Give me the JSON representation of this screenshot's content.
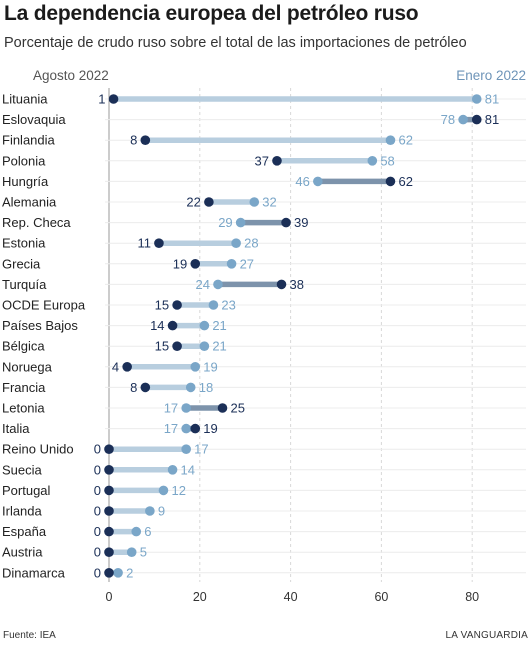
{
  "title": "La dependencia europea del petróleo ruso",
  "subtitle": "Porcentaje de crudo ruso sobre el total de las importaciones de petróleo",
  "source": "Fuente: IEA",
  "brand": "LA VANGUARDIA",
  "colors": {
    "start": "#1b2f57",
    "end": "#7aa6c8",
    "decrease_line": "#b8cedf",
    "increase_line": "#7d93ab",
    "grid": "#d8d8d8",
    "axis": "#9a9a9a"
  },
  "chart_data": {
    "type": "dumbbell",
    "series": [
      {
        "name": "Agosto 2022",
        "key": "aug"
      },
      {
        "name": "Enero 2022",
        "key": "jan"
      }
    ],
    "xlim": [
      0,
      85
    ],
    "xticks": [
      0,
      20,
      40,
      60,
      80
    ],
    "grid": true,
    "rows": [
      {
        "country": "Lituania",
        "aug": 1,
        "jan": 81
      },
      {
        "country": "Eslovaquia",
        "aug": 81,
        "jan": 78
      },
      {
        "country": "Finlandia",
        "aug": 8,
        "jan": 62
      },
      {
        "country": "Polonia",
        "aug": 37,
        "jan": 58
      },
      {
        "country": "Hungría",
        "aug": 62,
        "jan": 46
      },
      {
        "country": "Alemania",
        "aug": 22,
        "jan": 32
      },
      {
        "country": "Rep. Checa",
        "aug": 39,
        "jan": 29
      },
      {
        "country": "Estonia",
        "aug": 11,
        "jan": 28
      },
      {
        "country": "Grecia",
        "aug": 19,
        "jan": 27
      },
      {
        "country": "Turquía",
        "aug": 38,
        "jan": 24
      },
      {
        "country": "OCDE Europa",
        "aug": 15,
        "jan": 23
      },
      {
        "country": "Países Bajos",
        "aug": 14,
        "jan": 21
      },
      {
        "country": "Bélgica",
        "aug": 15,
        "jan": 21
      },
      {
        "country": "Noruega",
        "aug": 4,
        "jan": 19
      },
      {
        "country": "Francia",
        "aug": 8,
        "jan": 18
      },
      {
        "country": "Letonia",
        "aug": 25,
        "jan": 17
      },
      {
        "country": "Italia",
        "aug": 19,
        "jan": 17
      },
      {
        "country": "Reino Unido",
        "aug": 0,
        "jan": 17
      },
      {
        "country": "Suecia",
        "aug": 0,
        "jan": 14
      },
      {
        "country": "Portugal",
        "aug": 0,
        "jan": 12
      },
      {
        "country": "Irlanda",
        "aug": 0,
        "jan": 9
      },
      {
        "country": "España",
        "aug": 0,
        "jan": 6
      },
      {
        "country": "Austria",
        "aug": 0,
        "jan": 5
      },
      {
        "country": "Dinamarca",
        "aug": 0,
        "jan": 2
      }
    ]
  }
}
